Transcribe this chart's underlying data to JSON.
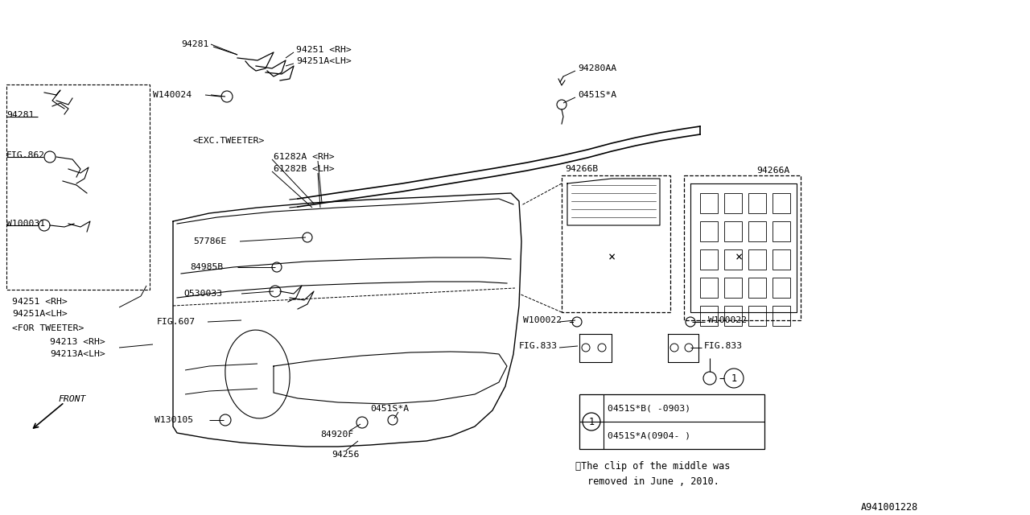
{
  "bg_color": "#ffffff",
  "line_color": "#000000",
  "fig_id": "A941001228",
  "note_line1": "※The clip of the middle was",
  "note_line2": "removed in June , 2010.",
  "figsize": [
    12.8,
    6.4
  ],
  "dpi": 100
}
